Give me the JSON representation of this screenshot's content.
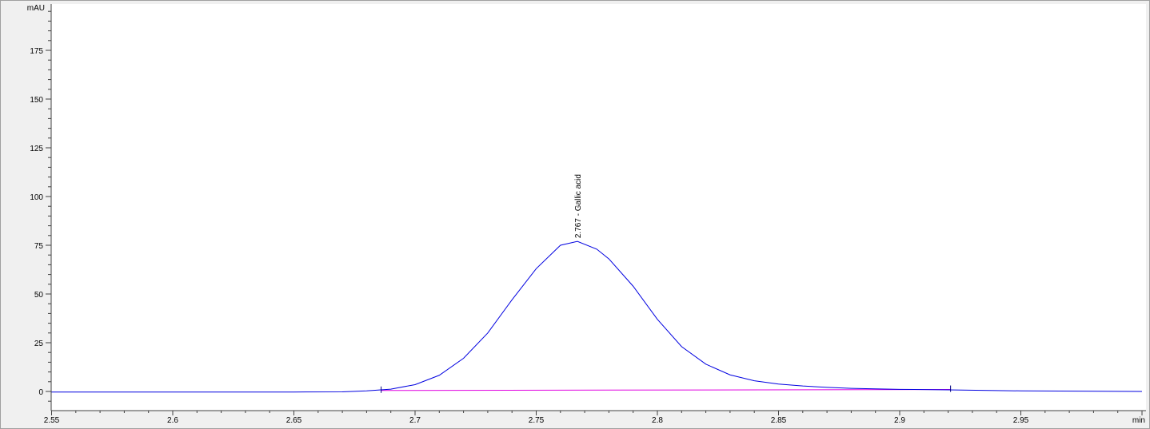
{
  "chart_data": {
    "type": "line",
    "title": "",
    "xlabel": "min",
    "ylabel": "mAU",
    "xlim": [
      2.55,
      3.0
    ],
    "ylim": [
      -10,
      199
    ],
    "x_ticks": [
      "2.55",
      "2.6",
      "2.65",
      "2.7",
      "2.75",
      "2.8",
      "2.85",
      "2.9",
      "2.95"
    ],
    "y_ticks": [
      "0",
      "25",
      "50",
      "75",
      "100",
      "125",
      "150",
      "175"
    ],
    "grid": false,
    "colors": {
      "signal": "#0000e0",
      "baseline": "#e000e0",
      "plot_bg": "#ffffff",
      "frame_bg": "#f0f0f0"
    },
    "series": [
      {
        "x": [
          2.55,
          2.6,
          2.65,
          2.67,
          2.68,
          2.69,
          2.7,
          2.71,
          2.72,
          2.73,
          2.74,
          2.75,
          2.76,
          2.767,
          2.775,
          2.78,
          2.79,
          2.8,
          2.81,
          2.82,
          2.83,
          2.84,
          2.85,
          2.86,
          2.87,
          2.88,
          2.9,
          2.92,
          2.95,
          3.0
        ],
        "y": [
          -0.3,
          -0.3,
          -0.3,
          -0.2,
          0.3,
          1.2,
          3.5,
          8.3,
          17,
          30,
          47,
          63,
          75,
          77,
          73,
          68,
          54,
          37,
          23,
          14,
          8.5,
          5.5,
          3.8,
          2.8,
          2.1,
          1.6,
          1.1,
          0.8,
          0.3,
          0
        ]
      }
    ],
    "baseline": {
      "x": [
        2.686,
        2.921
      ],
      "y": [
        0.5,
        1.0
      ]
    },
    "annotations": [
      {
        "x": 2.767,
        "y": 77,
        "text": "2.767 - Gallic acid"
      }
    ]
  }
}
